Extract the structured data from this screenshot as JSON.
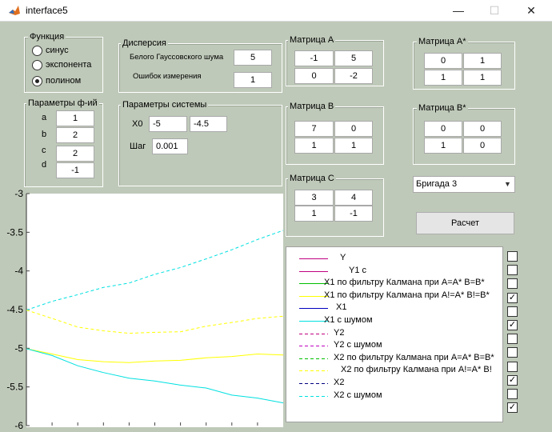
{
  "window": {
    "title": "interface5",
    "minimize_glyph": "—",
    "maximize_glyph": "☐",
    "close_glyph": "✕"
  },
  "function_panel": {
    "title": "Функция",
    "options": [
      {
        "label": "синус",
        "selected": false
      },
      {
        "label": "экспонента",
        "selected": false
      },
      {
        "label": "полином",
        "selected": true
      }
    ]
  },
  "func_params": {
    "title": "Параметры ф-ий",
    "labels": [
      "a",
      "b",
      "c",
      "d"
    ],
    "values": [
      "1",
      "2",
      "2",
      "-1"
    ]
  },
  "dispersion": {
    "title": "Дисперсия",
    "gauss_label": "Белого Гауссовского шума",
    "gauss_value": "5",
    "error_label": "Ошибок измерения",
    "error_value": "1"
  },
  "system_params": {
    "title": "Параметры системы",
    "x0_label": "X0",
    "x0_values": [
      "-5",
      "-4.5"
    ],
    "step_label": "Шаг",
    "step_value": "0.001"
  },
  "matrices": {
    "A": {
      "title": "Матрица А",
      "cells": [
        "-1",
        "5",
        "0",
        "-2"
      ]
    },
    "B": {
      "title": "Матрица В",
      "cells": [
        "7",
        "0",
        "1",
        "1"
      ]
    },
    "C": {
      "title": "Матрица С",
      "cells": [
        "3",
        "4",
        "1",
        "-1"
      ]
    },
    "A_star": {
      "title": "Матрица А*",
      "cells": [
        "0",
        "1",
        "1",
        "1"
      ]
    },
    "B_star": {
      "title": "Матрица В*",
      "cells": [
        "0",
        "0",
        "1",
        "0"
      ]
    }
  },
  "brigade_select": {
    "value": "Бригада 3",
    "arrow_icon": "chevron-down-icon"
  },
  "compute_button": {
    "label": "Расчет"
  },
  "legend": {
    "items": [
      {
        "label": "Y",
        "color": "#c00080",
        "dash": false,
        "checked": false
      },
      {
        "label": "Y1 c",
        "color": "#c00080",
        "dash": false,
        "checked": false
      },
      {
        "label": "X1 по фильтру Калмана при A=A* B=B*",
        "color": "#00c000",
        "dash": false,
        "checked": false
      },
      {
        "label": "X1 по фильтру Калмана при A!=A* B!=B*",
        "color": "#ffff00",
        "dash": false,
        "checked": true
      },
      {
        "label": "X1",
        "color": "#0000c0",
        "dash": false,
        "checked": false
      },
      {
        "label": "X1 с шумом",
        "color": "#00e0e0",
        "dash": false,
        "checked": true
      },
      {
        "label": "Y2",
        "color": "#c00080",
        "dash": true,
        "checked": false
      },
      {
        "label": "Y2 с шумом",
        "color": "#c000c0",
        "dash": true,
        "checked": false
      },
      {
        "label": "X2 по фильтру Калмана при A=A* B=B*",
        "color": "#00c000",
        "dash": true,
        "checked": false
      },
      {
        "label": "X2 по фильтру Калмана при A!=A* B!",
        "color": "#ffff00",
        "dash": true,
        "checked": true
      },
      {
        "label": "X2",
        "color": "#000080",
        "dash": true,
        "checked": false
      },
      {
        "label": "X2 с шумом",
        "color": "#00e0e0",
        "dash": true,
        "checked": true
      }
    ]
  },
  "chart_data": {
    "type": "line",
    "ylim": [
      -6,
      -3
    ],
    "yticks": [
      "-3",
      "-3.5",
      "-4",
      "-4.5",
      "-5",
      "-5.5",
      "-6"
    ],
    "series": [
      {
        "color": "#00e0e0",
        "dash": true,
        "x": [
          0,
          0.1,
          0.2,
          0.3,
          0.4,
          0.5,
          0.6,
          0.7,
          0.8,
          0.9,
          1.0
        ],
        "y": [
          -4.5,
          -4.4,
          -4.3,
          -4.22,
          -4.15,
          -4.05,
          -3.95,
          -3.85,
          -3.72,
          -3.6,
          -3.47
        ]
      },
      {
        "color": "#ffff00",
        "dash": true,
        "x": [
          0,
          0.1,
          0.2,
          0.3,
          0.4,
          0.5,
          0.6,
          0.7,
          0.8,
          0.9,
          1.0
        ],
        "y": [
          -4.5,
          -4.62,
          -4.72,
          -4.78,
          -4.8,
          -4.8,
          -4.78,
          -4.72,
          -4.66,
          -4.62,
          -4.58
        ]
      },
      {
        "color": "#ffff00",
        "dash": false,
        "x": [
          0,
          0.1,
          0.2,
          0.3,
          0.4,
          0.5,
          0.6,
          0.7,
          0.8,
          0.9,
          1.0
        ],
        "y": [
          -5.0,
          -5.08,
          -5.14,
          -5.18,
          -5.18,
          -5.17,
          -5.15,
          -5.13,
          -5.1,
          -5.08,
          -5.08
        ]
      },
      {
        "color": "#00e0e0",
        "dash": false,
        "x": [
          0,
          0.1,
          0.2,
          0.3,
          0.4,
          0.5,
          0.6,
          0.7,
          0.8,
          0.9,
          1.0
        ],
        "y": [
          -5.0,
          -5.1,
          -5.22,
          -5.32,
          -5.38,
          -5.43,
          -5.47,
          -5.52,
          -5.6,
          -5.65,
          -5.7
        ]
      }
    ]
  }
}
